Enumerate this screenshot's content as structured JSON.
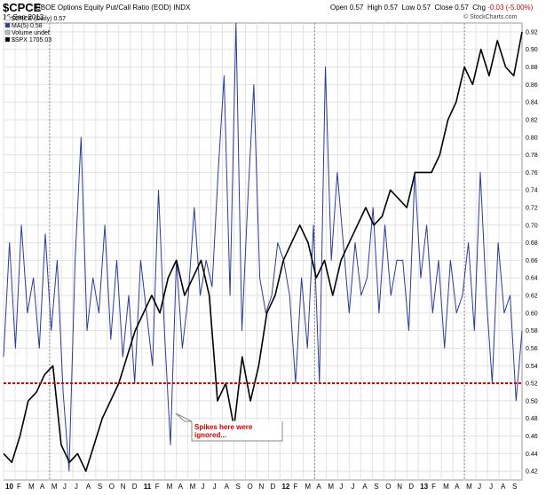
{
  "header": {
    "symbol": "$CPCE",
    "description": "CBOE Options Equity Put/Call Ratio (EOD)",
    "exchange": "INDX",
    "date": "16-Sep-2013",
    "open_label": "Open",
    "open": "0.57",
    "high_label": "High",
    "high": "0.57",
    "low_label": "Low",
    "low": "0.57",
    "close_label": "Close",
    "close": "0.57",
    "chg_label": "Chg",
    "chg": "-0.03 (-5.00%)",
    "credit": "© StockCharts.com"
  },
  "legend": [
    {
      "text": "$CPCE (Daily) 0.57",
      "color": "#ffffff"
    },
    {
      "text": "MA(5) 0.58",
      "color": "#2b3b9a"
    },
    {
      "text": "Volume undef",
      "color": "#bbbbbb"
    },
    {
      "text": "$SPX  1705.03",
      "color": "#000000"
    }
  ],
  "annotation": {
    "text_line1": "Spikes here were",
    "text_line2": "ignored..."
  },
  "colors": {
    "ma": "#2b3b9a",
    "spx": "#000000",
    "ref_line": "#e00000",
    "grid": "#e2e2e2",
    "marker": "#8a8aa0",
    "annotation": "#cc0000"
  },
  "chart_data": {
    "type": "line",
    "title": "CBOE Options Equity Put/Call Ratio (EOD)",
    "y_axis": {
      "side": "right",
      "ylim": [
        0.41,
        0.93
      ],
      "ticks": [
        "0.42",
        "0.44",
        "0.46",
        "0.48",
        "0.50",
        "0.52",
        "0.54",
        "0.56",
        "0.58",
        "0.60",
        "0.62",
        "0.64",
        "0.66",
        "0.68",
        "0.70",
        "0.72",
        "0.74",
        "0.76",
        "0.78",
        "0.80",
        "0.82",
        "0.84",
        "0.86",
        "0.88",
        "0.90",
        "0.92"
      ]
    },
    "x_axis": {
      "ticks": [
        "10",
        "F",
        "M",
        "A",
        "M",
        "J",
        "J",
        "A",
        "S",
        "O",
        "N",
        "D",
        "11",
        "F",
        "M",
        "A",
        "M",
        "J",
        "J",
        "A",
        "S",
        "O",
        "N",
        "D",
        "12",
        "F",
        "M",
        "A",
        "M",
        "J",
        "J",
        "A",
        "S",
        "O",
        "N",
        "D",
        "13",
        "F",
        "M",
        "A",
        "M",
        "J",
        "J",
        "A",
        "S"
      ],
      "bold": [
        "10",
        "11",
        "12",
        "13"
      ],
      "start": "2010-01",
      "end": "2013-09"
    },
    "reference_line": 0.52,
    "markers": [
      "2010-05",
      "2012-04",
      "2013-05"
    ],
    "series": [
      {
        "name": "MA(5)",
        "x_start": "2010-01",
        "x_end": "2013-09",
        "values": [
          0.55,
          0.68,
          0.56,
          0.7,
          0.6,
          0.64,
          0.56,
          0.69,
          0.58,
          0.66,
          0.51,
          0.42,
          0.66,
          0.8,
          0.58,
          0.64,
          0.6,
          0.7,
          0.57,
          0.66,
          0.55,
          0.62,
          0.52,
          0.66,
          0.6,
          0.54,
          0.74,
          0.58,
          0.45,
          0.66,
          0.56,
          0.62,
          0.72,
          0.62,
          0.66,
          0.63,
          0.76,
          0.87,
          0.62,
          0.93,
          0.58,
          0.73,
          0.86,
          0.64,
          0.6,
          0.62,
          0.68,
          0.66,
          0.62,
          0.52,
          0.64,
          0.56,
          0.7,
          0.52,
          0.88,
          0.66,
          0.76,
          0.68,
          0.6,
          0.68,
          0.62,
          0.64,
          0.72,
          0.6,
          0.7,
          0.62,
          0.66,
          0.66,
          0.58,
          0.76,
          0.64,
          0.7,
          0.6,
          0.66,
          0.56,
          0.66,
          0.6,
          0.62,
          0.68,
          0.58,
          0.76,
          0.62,
          0.52,
          0.68,
          0.6,
          0.62,
          0.5,
          0.58
        ]
      },
      {
        "name": "$SPX",
        "last": "1705.03",
        "x_start": "2010-01",
        "x_end": "2013-09",
        "values": [
          0.44,
          0.43,
          0.46,
          0.5,
          0.51,
          0.53,
          0.54,
          0.45,
          0.43,
          0.44,
          0.42,
          0.45,
          0.48,
          0.5,
          0.52,
          0.55,
          0.58,
          0.6,
          0.62,
          0.6,
          0.64,
          0.66,
          0.62,
          0.64,
          0.66,
          0.62,
          0.5,
          0.52,
          0.47,
          0.55,
          0.5,
          0.54,
          0.6,
          0.62,
          0.66,
          0.68,
          0.7,
          0.68,
          0.64,
          0.66,
          0.62,
          0.66,
          0.68,
          0.7,
          0.72,
          0.7,
          0.71,
          0.74,
          0.73,
          0.72,
          0.76,
          0.76,
          0.76,
          0.78,
          0.82,
          0.84,
          0.88,
          0.86,
          0.9,
          0.87,
          0.91,
          0.88,
          0.87,
          0.92
        ]
      }
    ]
  }
}
